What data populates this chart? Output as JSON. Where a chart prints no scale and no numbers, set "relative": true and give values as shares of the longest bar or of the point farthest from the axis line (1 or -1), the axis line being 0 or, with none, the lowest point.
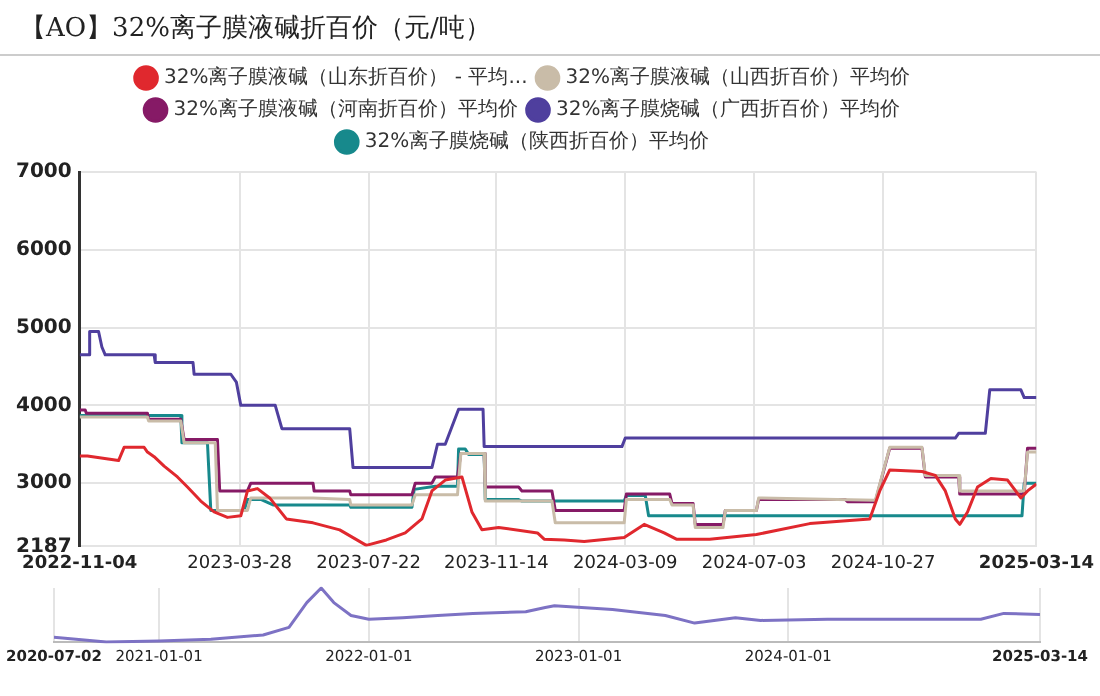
{
  "chart_data": [
    {
      "type": "line",
      "title": "【AO】32%离子膜液碱折百价（元/吨）",
      "xlim": [
        "2022-11-04",
        "2025-03-14"
      ],
      "xticks": [
        "2022-11-04",
        "2023-03-28",
        "2023-07-22",
        "2023-11-14",
        "2024-03-09",
        "2024-07-03",
        "2024-10-27",
        "2025-03-14"
      ],
      "ylim": [
        2187,
        7000
      ],
      "yticks": [
        2187,
        3000,
        4000,
        5000,
        6000,
        7000
      ],
      "grid": true,
      "legend": "top",
      "marker": "none",
      "line_style": "solid",
      "series": [
        {
          "name": "32%离子膜液碱（山东折百价） - 平均...",
          "color": "#e0282e",
          "x": [
            "2022-11-04",
            "2022-11-11",
            "2022-12-09",
            "2022-12-14",
            "2023-01-01",
            "2023-01-04",
            "2023-01-10",
            "2023-01-19",
            "2023-01-31",
            "2023-02-09",
            "2023-02-21",
            "2023-03-05",
            "2023-03-17",
            "2023-03-29",
            "2023-04-04",
            "2023-04-13",
            "2023-04-24",
            "2023-05-09",
            "2023-06-02",
            "2023-06-26",
            "2023-07-20",
            "2023-08-07",
            "2023-08-24",
            "2023-09-08",
            "2023-09-17",
            "2023-09-29",
            "2023-10-14",
            "2023-10-23",
            "2023-11-01",
            "2023-11-16",
            "2023-12-21",
            "2023-12-27",
            "2024-01-14",
            "2024-02-01",
            "2024-03-08",
            "2024-03-26",
            "2024-04-13",
            "2024-04-24",
            "2024-05-24",
            "2024-07-05",
            "2024-08-22",
            "2024-10-15",
            "2024-10-24",
            "2024-11-02",
            "2024-12-01",
            "2024-12-13",
            "2024-12-22",
            "2024-12-31",
            "2025-01-04",
            "2025-01-11",
            "2025-01-20",
            "2025-02-01",
            "2025-02-16",
            "2025-02-28",
            "2025-03-06",
            "2025-03-14"
          ],
          "values": [
            3350,
            3350,
            3290,
            3460,
            3460,
            3400,
            3340,
            3220,
            3080,
            2950,
            2770,
            2630,
            2560,
            2580,
            2900,
            2930,
            2810,
            2540,
            2490,
            2400,
            2200,
            2270,
            2360,
            2540,
            2900,
            3040,
            3080,
            2630,
            2400,
            2430,
            2360,
            2280,
            2270,
            2250,
            2300,
            2470,
            2360,
            2280,
            2280,
            2340,
            2480,
            2540,
            2900,
            3170,
            3150,
            3100,
            2900,
            2540,
            2470,
            2630,
            2950,
            3060,
            3040,
            2810,
            2900,
            2990
          ]
        },
        {
          "name": "32%离子膜液碱（山西折百价）平均价",
          "color": "#c9bca8",
          "x": [
            "2022-11-04",
            "2023-01-04",
            "2023-01-05",
            "2023-02-03",
            "2023-02-06",
            "2023-03-06",
            "2023-03-08",
            "2023-04-04",
            "2023-04-07",
            "2023-06-02",
            "2023-07-05",
            "2023-07-06",
            "2023-08-30",
            "2023-09-02",
            "2023-10-10",
            "2023-10-13",
            "2023-11-03",
            "2023-11-04",
            "2024-01-03",
            "2024-01-06",
            "2024-03-08",
            "2024-03-10",
            "2024-04-18",
            "2024-04-20",
            "2024-05-09",
            "2024-05-11",
            "2024-06-05",
            "2024-06-07",
            "2024-07-05",
            "2024-07-07",
            "2024-10-20",
            "2024-11-02",
            "2024-12-01",
            "2024-12-04",
            "2025-01-03",
            "2025-01-04",
            "2025-03-03",
            "2025-03-06",
            "2025-03-14"
          ],
          "values": [
            3850,
            3850,
            3800,
            3800,
            3520,
            3520,
            2650,
            2650,
            2810,
            2810,
            2790,
            2720,
            2720,
            2850,
            2850,
            3380,
            3380,
            2770,
            2770,
            2490,
            2490,
            2790,
            2790,
            2720,
            2720,
            2430,
            2430,
            2650,
            2650,
            2810,
            2780,
            3460,
            3460,
            3100,
            3100,
            2900,
            2900,
            3400,
            3400
          ]
        },
        {
          "name": "32%离子膜液碱（河南折百价）平均价",
          "color": "#861a66",
          "x": [
            "2022-11-04",
            "2022-11-09",
            "2022-11-10",
            "2023-01-04",
            "2023-01-05",
            "2023-02-03",
            "2023-02-06",
            "2023-03-08",
            "2023-03-10",
            "2023-04-04",
            "2023-04-07",
            "2023-06-02",
            "2023-06-03",
            "2023-07-05",
            "2023-07-06",
            "2023-08-30",
            "2023-09-02",
            "2023-09-17",
            "2023-09-20",
            "2023-10-10",
            "2023-10-13",
            "2023-11-03",
            "2023-11-04",
            "2023-12-04",
            "2023-12-07",
            "2024-01-03",
            "2024-01-06",
            "2024-03-08",
            "2024-03-10",
            "2024-04-18",
            "2024-04-20",
            "2024-05-09",
            "2024-05-11",
            "2024-06-05",
            "2024-06-07",
            "2024-07-05",
            "2024-07-07",
            "2024-09-23",
            "2024-09-25",
            "2024-10-20",
            "2024-11-02",
            "2024-12-01",
            "2024-12-04",
            "2025-01-03",
            "2025-01-04",
            "2025-03-03",
            "2025-03-06",
            "2025-03-14"
          ],
          "values": [
            3940,
            3940,
            3900,
            3900,
            3820,
            3820,
            3560,
            3560,
            2900,
            2900,
            3000,
            3000,
            2900,
            2900,
            2850,
            2850,
            3000,
            3000,
            3080,
            3080,
            3380,
            3380,
            2950,
            2950,
            2900,
            2900,
            2650,
            2650,
            2860,
            2860,
            2740,
            2740,
            2470,
            2470,
            2650,
            2650,
            2790,
            2790,
            2760,
            2760,
            3450,
            3450,
            3080,
            3080,
            2860,
            2860,
            3450,
            3450
          ]
        },
        {
          "name": "32%离子膜烧碱（广西折百价）平均价",
          "color": "#4f3f9e",
          "x": [
            "2022-11-04",
            "2022-11-12",
            "2022-11-13",
            "2022-11-21",
            "2022-11-24",
            "2022-11-27",
            "2023-01-10",
            "2023-01-11",
            "2023-02-14",
            "2023-02-15",
            "2023-03-20",
            "2023-03-25",
            "2023-03-29",
            "2023-04-29",
            "2023-05-05",
            "2023-07-05",
            "2023-07-08",
            "2023-09-17",
            "2023-09-22",
            "2023-09-29",
            "2023-10-11",
            "2023-11-02",
            "2023-11-03",
            "2024-03-06",
            "2024-03-09",
            "2024-12-31",
            "2025-01-03",
            "2025-01-27",
            "2025-01-31",
            "2025-02-28",
            "2025-03-03",
            "2025-03-14"
          ],
          "values": [
            4650,
            4650,
            4950,
            4950,
            4750,
            4650,
            4650,
            4550,
            4550,
            4400,
            4400,
            4300,
            4000,
            4000,
            3700,
            3700,
            3200,
            3200,
            3500,
            3500,
            3950,
            3950,
            3470,
            3470,
            3580,
            3580,
            3640,
            3640,
            4200,
            4200,
            4100,
            4100
          ]
        },
        {
          "name": "32%离子膜烧碱（陕西折百价）平均价",
          "color": "#17898c",
          "x": [
            "2022-11-04",
            "2023-02-03",
            "2023-02-04",
            "2023-02-27",
            "2023-03-02",
            "2023-04-01",
            "2023-04-04",
            "2023-04-16",
            "2023-04-27",
            "2023-07-05",
            "2023-07-06",
            "2023-08-30",
            "2023-09-01",
            "2023-09-20",
            "2023-10-10",
            "2023-10-11",
            "2023-10-17",
            "2023-10-20",
            "2023-11-03",
            "2023-11-04",
            "2023-12-04",
            "2023-12-07",
            "2024-03-08",
            "2024-03-10",
            "2024-03-27",
            "2024-03-30",
            "2025-03-01",
            "2025-03-03",
            "2025-03-14"
          ],
          "values": [
            3870,
            3870,
            3520,
            3520,
            2650,
            2650,
            2790,
            2790,
            2720,
            2720,
            2690,
            2690,
            2920,
            2960,
            2960,
            3440,
            3440,
            3370,
            3370,
            2790,
            2790,
            2770,
            2770,
            2840,
            2840,
            2580,
            2580,
            3000,
            3000
          ]
        }
      ]
    },
    {
      "type": "line",
      "relative": true,
      "xlim": [
        "2020-07-02",
        "2025-03-14"
      ],
      "xticks": [
        "2020-07-02",
        "2021-01-01",
        "2022-01-01",
        "2023-01-01",
        "2024-01-01",
        "2025-03-14"
      ],
      "grid": "x",
      "tick_labels": "x",
      "marker": "none",
      "line_style": "solid",
      "series": [
        {
          "color": "#7d72c4",
          "x": [
            "2020-07-02",
            "2020-10-01",
            "2021-01-01",
            "2021-04-01",
            "2021-07-01",
            "2021-08-15",
            "2021-09-15",
            "2021-10-10",
            "2021-11-01",
            "2021-12-01",
            "2022-01-01",
            "2022-03-01",
            "2022-05-01",
            "2022-07-01",
            "2022-10-01",
            "2022-11-04",
            "2022-11-20",
            "2023-03-01",
            "2023-06-01",
            "2023-07-22",
            "2023-10-01",
            "2023-11-14",
            "2024-03-09",
            "2024-12-01",
            "2025-01-10",
            "2025-03-14"
          ],
          "values": [
            0.09,
            0,
            0.02,
            0.05,
            0.13,
            0.27,
            0.73,
            1,
            0.73,
            0.49,
            0.42,
            0.45,
            0.49,
            0.53,
            0.56,
            0.64,
            0.67,
            0.6,
            0.49,
            0.35,
            0.45,
            0.4,
            0.42,
            0.42,
            0.53,
            0.51
          ]
        }
      ]
    }
  ]
}
